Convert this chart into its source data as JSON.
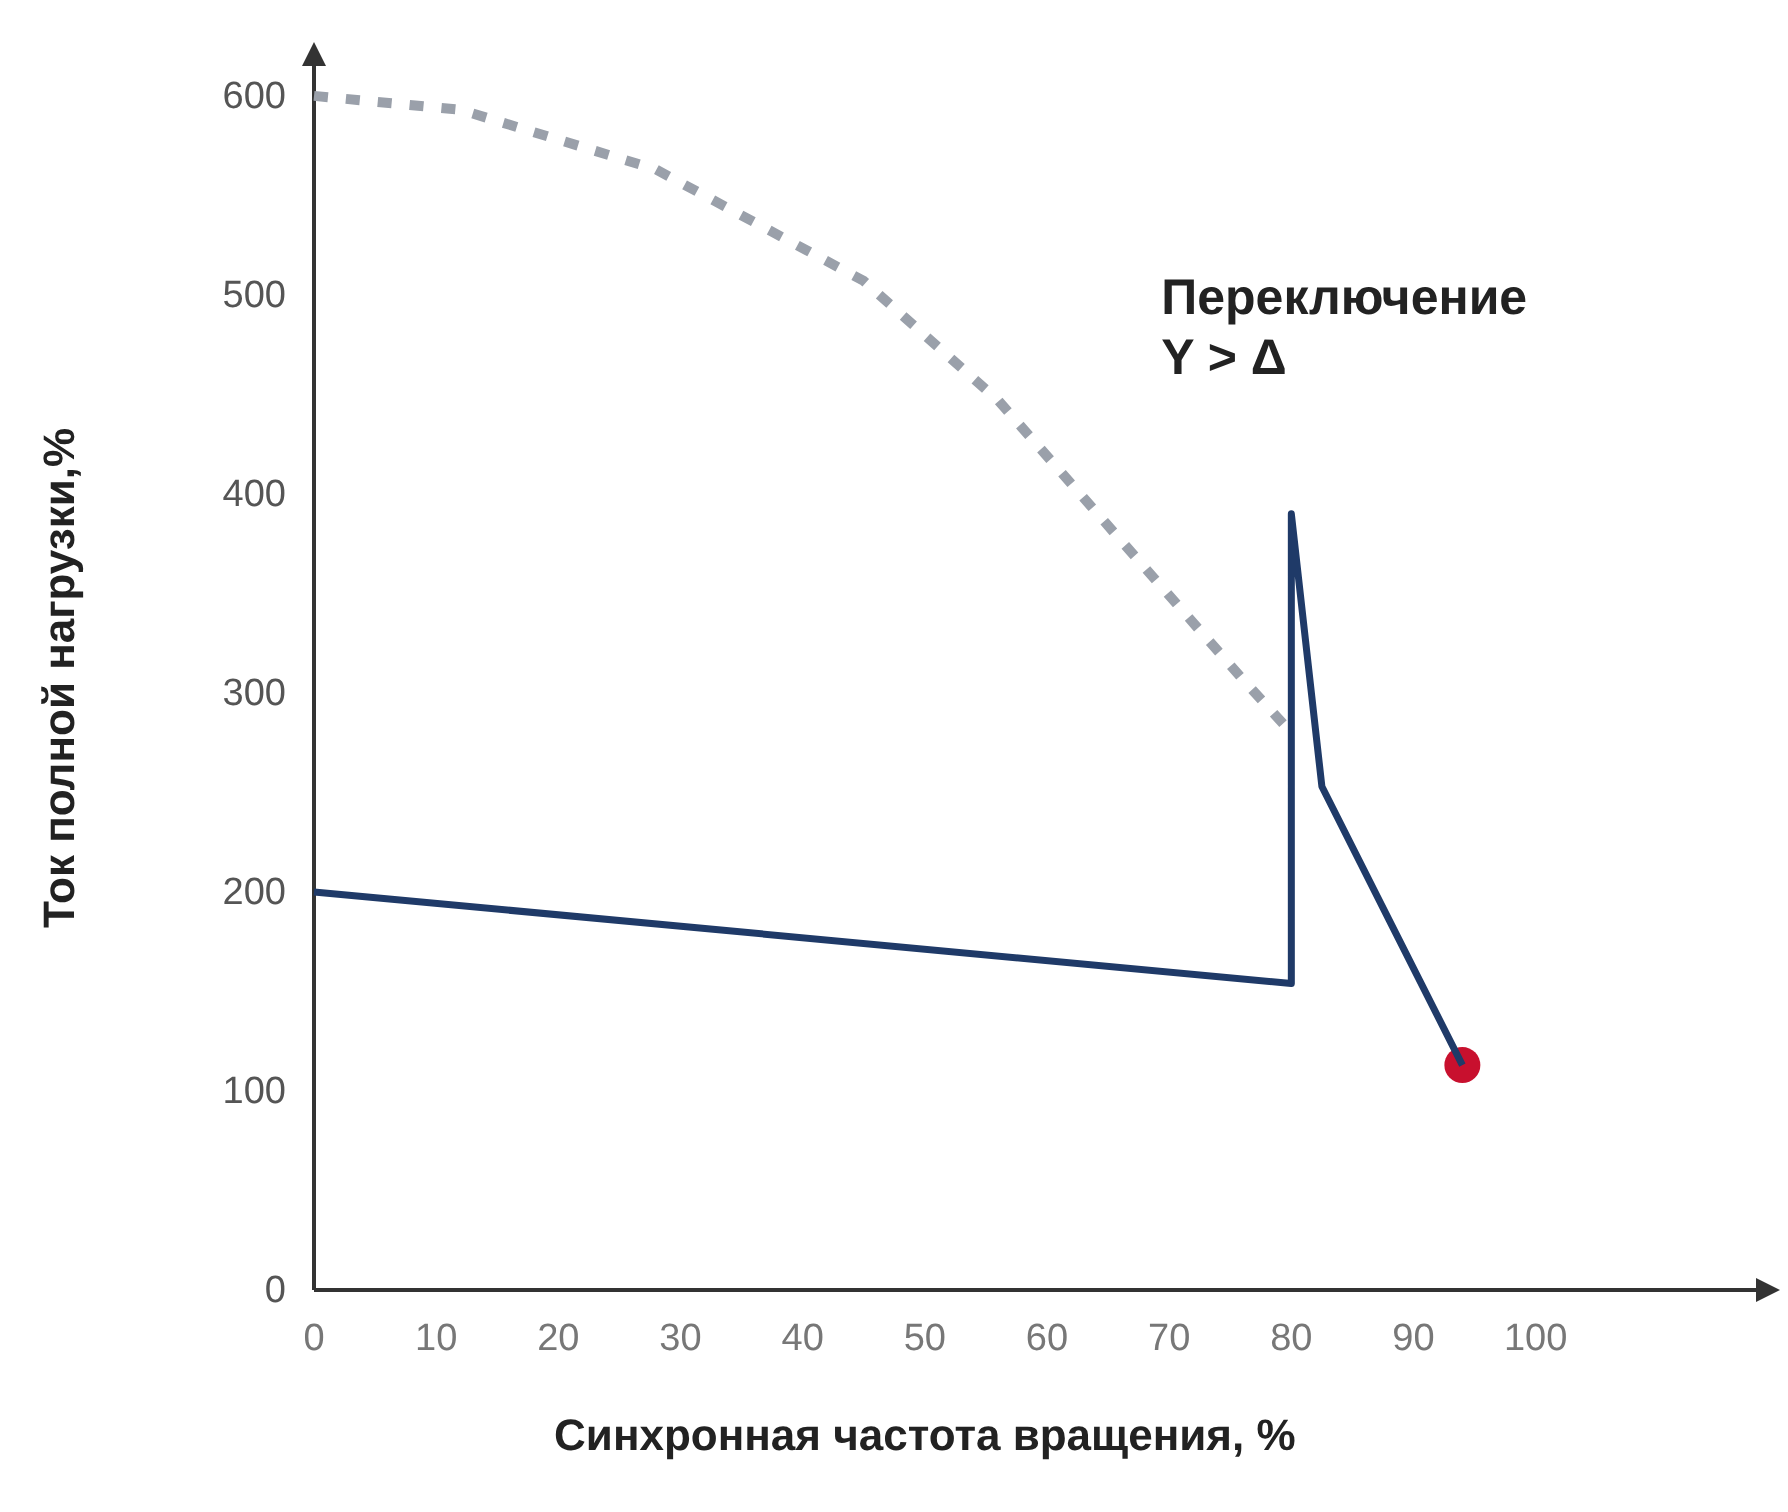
{
  "chart_data": {
    "type": "line",
    "xlabel": "Синхронная частота вращения, %",
    "ylabel": "Ток полной нагрузки,%",
    "xlim": [
      0,
      120
    ],
    "xticks": [
      0,
      10,
      20,
      30,
      40,
      50,
      60,
      70,
      80,
      90,
      100
    ],
    "ylim": [
      0,
      615
    ],
    "yticks": [
      0,
      100,
      200,
      300,
      400,
      500,
      600
    ],
    "grid": false,
    "series": [
      {
        "color": "#9aa0aa",
        "line_style": "dashed",
        "x": [
          0,
          12,
          28,
          45,
          56,
          66,
          76,
          80
        ],
        "values": [
          600,
          593,
          563,
          507,
          447,
          377,
          307,
          280
        ]
      },
      {
        "color": "#1f3a68",
        "line_style": "solid",
        "x": [
          0,
          80,
          80,
          82.5,
          88,
          94
        ],
        "values": [
          200,
          154,
          390,
          253,
          186,
          113
        ]
      },
      {
        "type": "scatter",
        "color": "#c8102e",
        "marker": "circle",
        "x": [
          94
        ],
        "values": [
          113
        ]
      }
    ],
    "annotations": [
      {
        "text": "Переключение\nY > Δ",
        "x": 80,
        "y": 390
      }
    ]
  }
}
